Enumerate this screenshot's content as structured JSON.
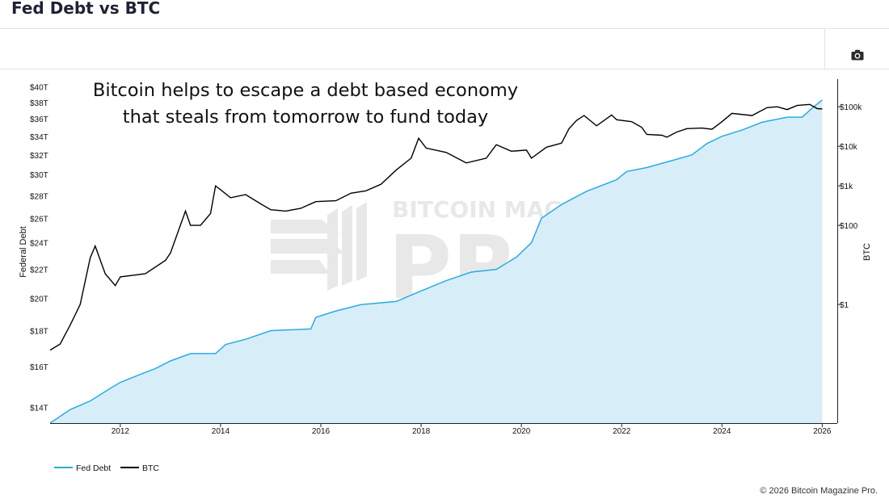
{
  "header": {
    "title": "Fed Debt vs BTC"
  },
  "toolbar": {
    "camera_icon": "camera-icon"
  },
  "footer": {
    "copyright": "© 2026 Bitcoin Magazine Pro."
  },
  "chart_data": {
    "type": "area",
    "title": "",
    "annotation": [
      "Bitcoin helps to escape a debt based economy",
      "that steals from tomorrow to fund today"
    ],
    "watermark": [
      "BITCOIN MAGAZINE",
      "PRO"
    ],
    "x_ticks": [
      2012,
      2014,
      2016,
      2018,
      2020,
      2022,
      2024,
      2026
    ],
    "x_range": [
      2010.6,
      2026.3
    ],
    "y_left": {
      "label": "Federal Debt",
      "scale": "log",
      "range": [
        13.3,
        41
      ],
      "ticks": [
        {
          "value": 14,
          "label": "$14T"
        },
        {
          "value": 16,
          "label": "$16T"
        },
        {
          "value": 18,
          "label": "$18T"
        },
        {
          "value": 20,
          "label": "$20T"
        },
        {
          "value": 22,
          "label": "$22T"
        },
        {
          "value": 24,
          "label": "$24T"
        },
        {
          "value": 26,
          "label": "$26T"
        },
        {
          "value": 28,
          "label": "$28T"
        },
        {
          "value": 30,
          "label": "$30T"
        },
        {
          "value": 32,
          "label": "$32T"
        },
        {
          "value": 34,
          "label": "$34T"
        },
        {
          "value": 36,
          "label": "$36T"
        },
        {
          "value": 38,
          "label": "$38T"
        },
        {
          "value": 40,
          "label": "$40T"
        }
      ]
    },
    "y_right": {
      "label": "BTC",
      "scale": "log",
      "range": [
        0.001,
        500000
      ],
      "ticks": [
        {
          "value": 1,
          "label": "$1"
        },
        {
          "value": 100,
          "label": "$100"
        },
        {
          "value": 1000,
          "label": "$1k"
        },
        {
          "value": 10000,
          "label": "$10k"
        },
        {
          "value": 100000,
          "label": "$100k"
        }
      ]
    },
    "legend_position": "bottom-left",
    "series": [
      {
        "name": "Fed Debt",
        "color": "#29abe2",
        "fill": "#d7eef9",
        "axis": "left",
        "points": [
          [
            2010.6,
            13.3
          ],
          [
            2010.8,
            13.6
          ],
          [
            2011.0,
            13.9
          ],
          [
            2011.2,
            14.1
          ],
          [
            2011.4,
            14.3
          ],
          [
            2011.8,
            14.9
          ],
          [
            2012.0,
            15.2
          ],
          [
            2012.3,
            15.5
          ],
          [
            2012.7,
            15.9
          ],
          [
            2013.0,
            16.3
          ],
          [
            2013.4,
            16.7
          ],
          [
            2013.9,
            16.7
          ],
          [
            2014.1,
            17.2
          ],
          [
            2014.5,
            17.5
          ],
          [
            2015.0,
            18.0
          ],
          [
            2015.8,
            18.1
          ],
          [
            2015.9,
            18.8
          ],
          [
            2016.3,
            19.2
          ],
          [
            2016.8,
            19.6
          ],
          [
            2017.5,
            19.8
          ],
          [
            2018.0,
            20.5
          ],
          [
            2018.5,
            21.2
          ],
          [
            2019.0,
            21.8
          ],
          [
            2019.5,
            22.0
          ],
          [
            2019.9,
            22.9
          ],
          [
            2020.2,
            24.0
          ],
          [
            2020.4,
            26.0
          ],
          [
            2020.8,
            27.2
          ],
          [
            2021.3,
            28.4
          ],
          [
            2021.9,
            29.5
          ],
          [
            2022.1,
            30.3
          ],
          [
            2022.5,
            30.7
          ],
          [
            2023.0,
            31.4
          ],
          [
            2023.4,
            32.0
          ],
          [
            2023.7,
            33.2
          ],
          [
            2024.0,
            34.0
          ],
          [
            2024.4,
            34.7
          ],
          [
            2024.8,
            35.6
          ],
          [
            2025.3,
            36.2
          ],
          [
            2025.6,
            36.2
          ],
          [
            2025.8,
            37.3
          ],
          [
            2026.0,
            38.3
          ]
        ]
      },
      {
        "name": "BTC",
        "color": "#000000",
        "axis": "right",
        "points": [
          [
            2010.6,
            0.07
          ],
          [
            2010.8,
            0.1
          ],
          [
            2011.0,
            0.3
          ],
          [
            2011.2,
            1
          ],
          [
            2011.4,
            15
          ],
          [
            2011.5,
            30
          ],
          [
            2011.7,
            6
          ],
          [
            2011.9,
            3
          ],
          [
            2012.0,
            5
          ],
          [
            2012.5,
            6
          ],
          [
            2012.9,
            13
          ],
          [
            2013.0,
            20
          ],
          [
            2013.3,
            230
          ],
          [
            2013.4,
            100
          ],
          [
            2013.6,
            100
          ],
          [
            2013.8,
            200
          ],
          [
            2013.9,
            1000
          ],
          [
            2014.0,
            800
          ],
          [
            2014.2,
            500
          ],
          [
            2014.5,
            600
          ],
          [
            2014.8,
            350
          ],
          [
            2015.0,
            250
          ],
          [
            2015.3,
            230
          ],
          [
            2015.6,
            270
          ],
          [
            2015.9,
            400
          ],
          [
            2016.3,
            420
          ],
          [
            2016.6,
            650
          ],
          [
            2016.9,
            750
          ],
          [
            2017.2,
            1100
          ],
          [
            2017.5,
            2500
          ],
          [
            2017.8,
            5000
          ],
          [
            2017.95,
            16000
          ],
          [
            2018.1,
            9000
          ],
          [
            2018.5,
            7000
          ],
          [
            2018.9,
            3800
          ],
          [
            2019.3,
            5000
          ],
          [
            2019.5,
            11000
          ],
          [
            2019.8,
            7500
          ],
          [
            2020.1,
            8000
          ],
          [
            2020.2,
            5000
          ],
          [
            2020.5,
            9500
          ],
          [
            2020.8,
            12000
          ],
          [
            2020.95,
            28000
          ],
          [
            2021.1,
            45000
          ],
          [
            2021.25,
            60000
          ],
          [
            2021.5,
            33000
          ],
          [
            2021.8,
            62000
          ],
          [
            2021.9,
            47000
          ],
          [
            2022.2,
            42000
          ],
          [
            2022.4,
            30000
          ],
          [
            2022.5,
            20000
          ],
          [
            2022.8,
            19000
          ],
          [
            2022.9,
            17000
          ],
          [
            2023.1,
            23000
          ],
          [
            2023.3,
            28000
          ],
          [
            2023.6,
            29000
          ],
          [
            2023.8,
            27000
          ],
          [
            2024.0,
            42000
          ],
          [
            2024.2,
            68000
          ],
          [
            2024.6,
            60000
          ],
          [
            2024.9,
            95000
          ],
          [
            2025.1,
            100000
          ],
          [
            2025.3,
            85000
          ],
          [
            2025.5,
            108000
          ],
          [
            2025.75,
            115000
          ],
          [
            2025.9,
            90000
          ],
          [
            2026.0,
            88000
          ]
        ]
      }
    ]
  }
}
